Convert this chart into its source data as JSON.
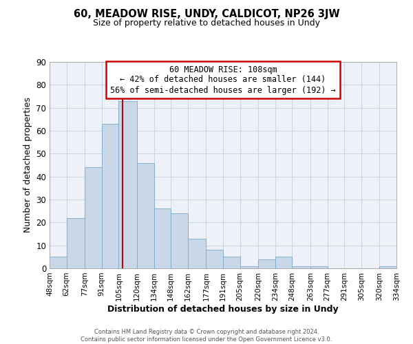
{
  "title": "60, MEADOW RISE, UNDY, CALDICOT, NP26 3JW",
  "subtitle": "Size of property relative to detached houses in Undy",
  "xlabel": "Distribution of detached houses by size in Undy",
  "ylabel": "Number of detached properties",
  "bar_color": "#c8d8e8",
  "bar_edge_color": "#7aaac8",
  "grid_color": "#c8d8e8",
  "background_color": "#eef2f8",
  "vline_x": 108,
  "vline_color": "#cc0000",
  "annotation_box_color": "#cc0000",
  "annotation_line1": "60 MEADOW RISE: 108sqm",
  "annotation_line2": "← 42% of detached houses are smaller (144)",
  "annotation_line3": "56% of semi-detached houses are larger (192) →",
  "bin_edges": [
    48,
    62,
    77,
    91,
    105,
    120,
    134,
    148,
    162,
    177,
    191,
    205,
    220,
    234,
    248,
    263,
    277,
    291,
    305,
    320,
    334
  ],
  "bin_heights": [
    5,
    22,
    44,
    63,
    73,
    46,
    26,
    24,
    13,
    8,
    5,
    1,
    4,
    5,
    1,
    1,
    0,
    0,
    0,
    1
  ],
  "ylim": [
    0,
    90
  ],
  "yticks": [
    0,
    10,
    20,
    30,
    40,
    50,
    60,
    70,
    80,
    90
  ],
  "footer_line1": "Contains HM Land Registry data © Crown copyright and database right 2024.",
  "footer_line2": "Contains public sector information licensed under the Open Government Licence v3.0."
}
